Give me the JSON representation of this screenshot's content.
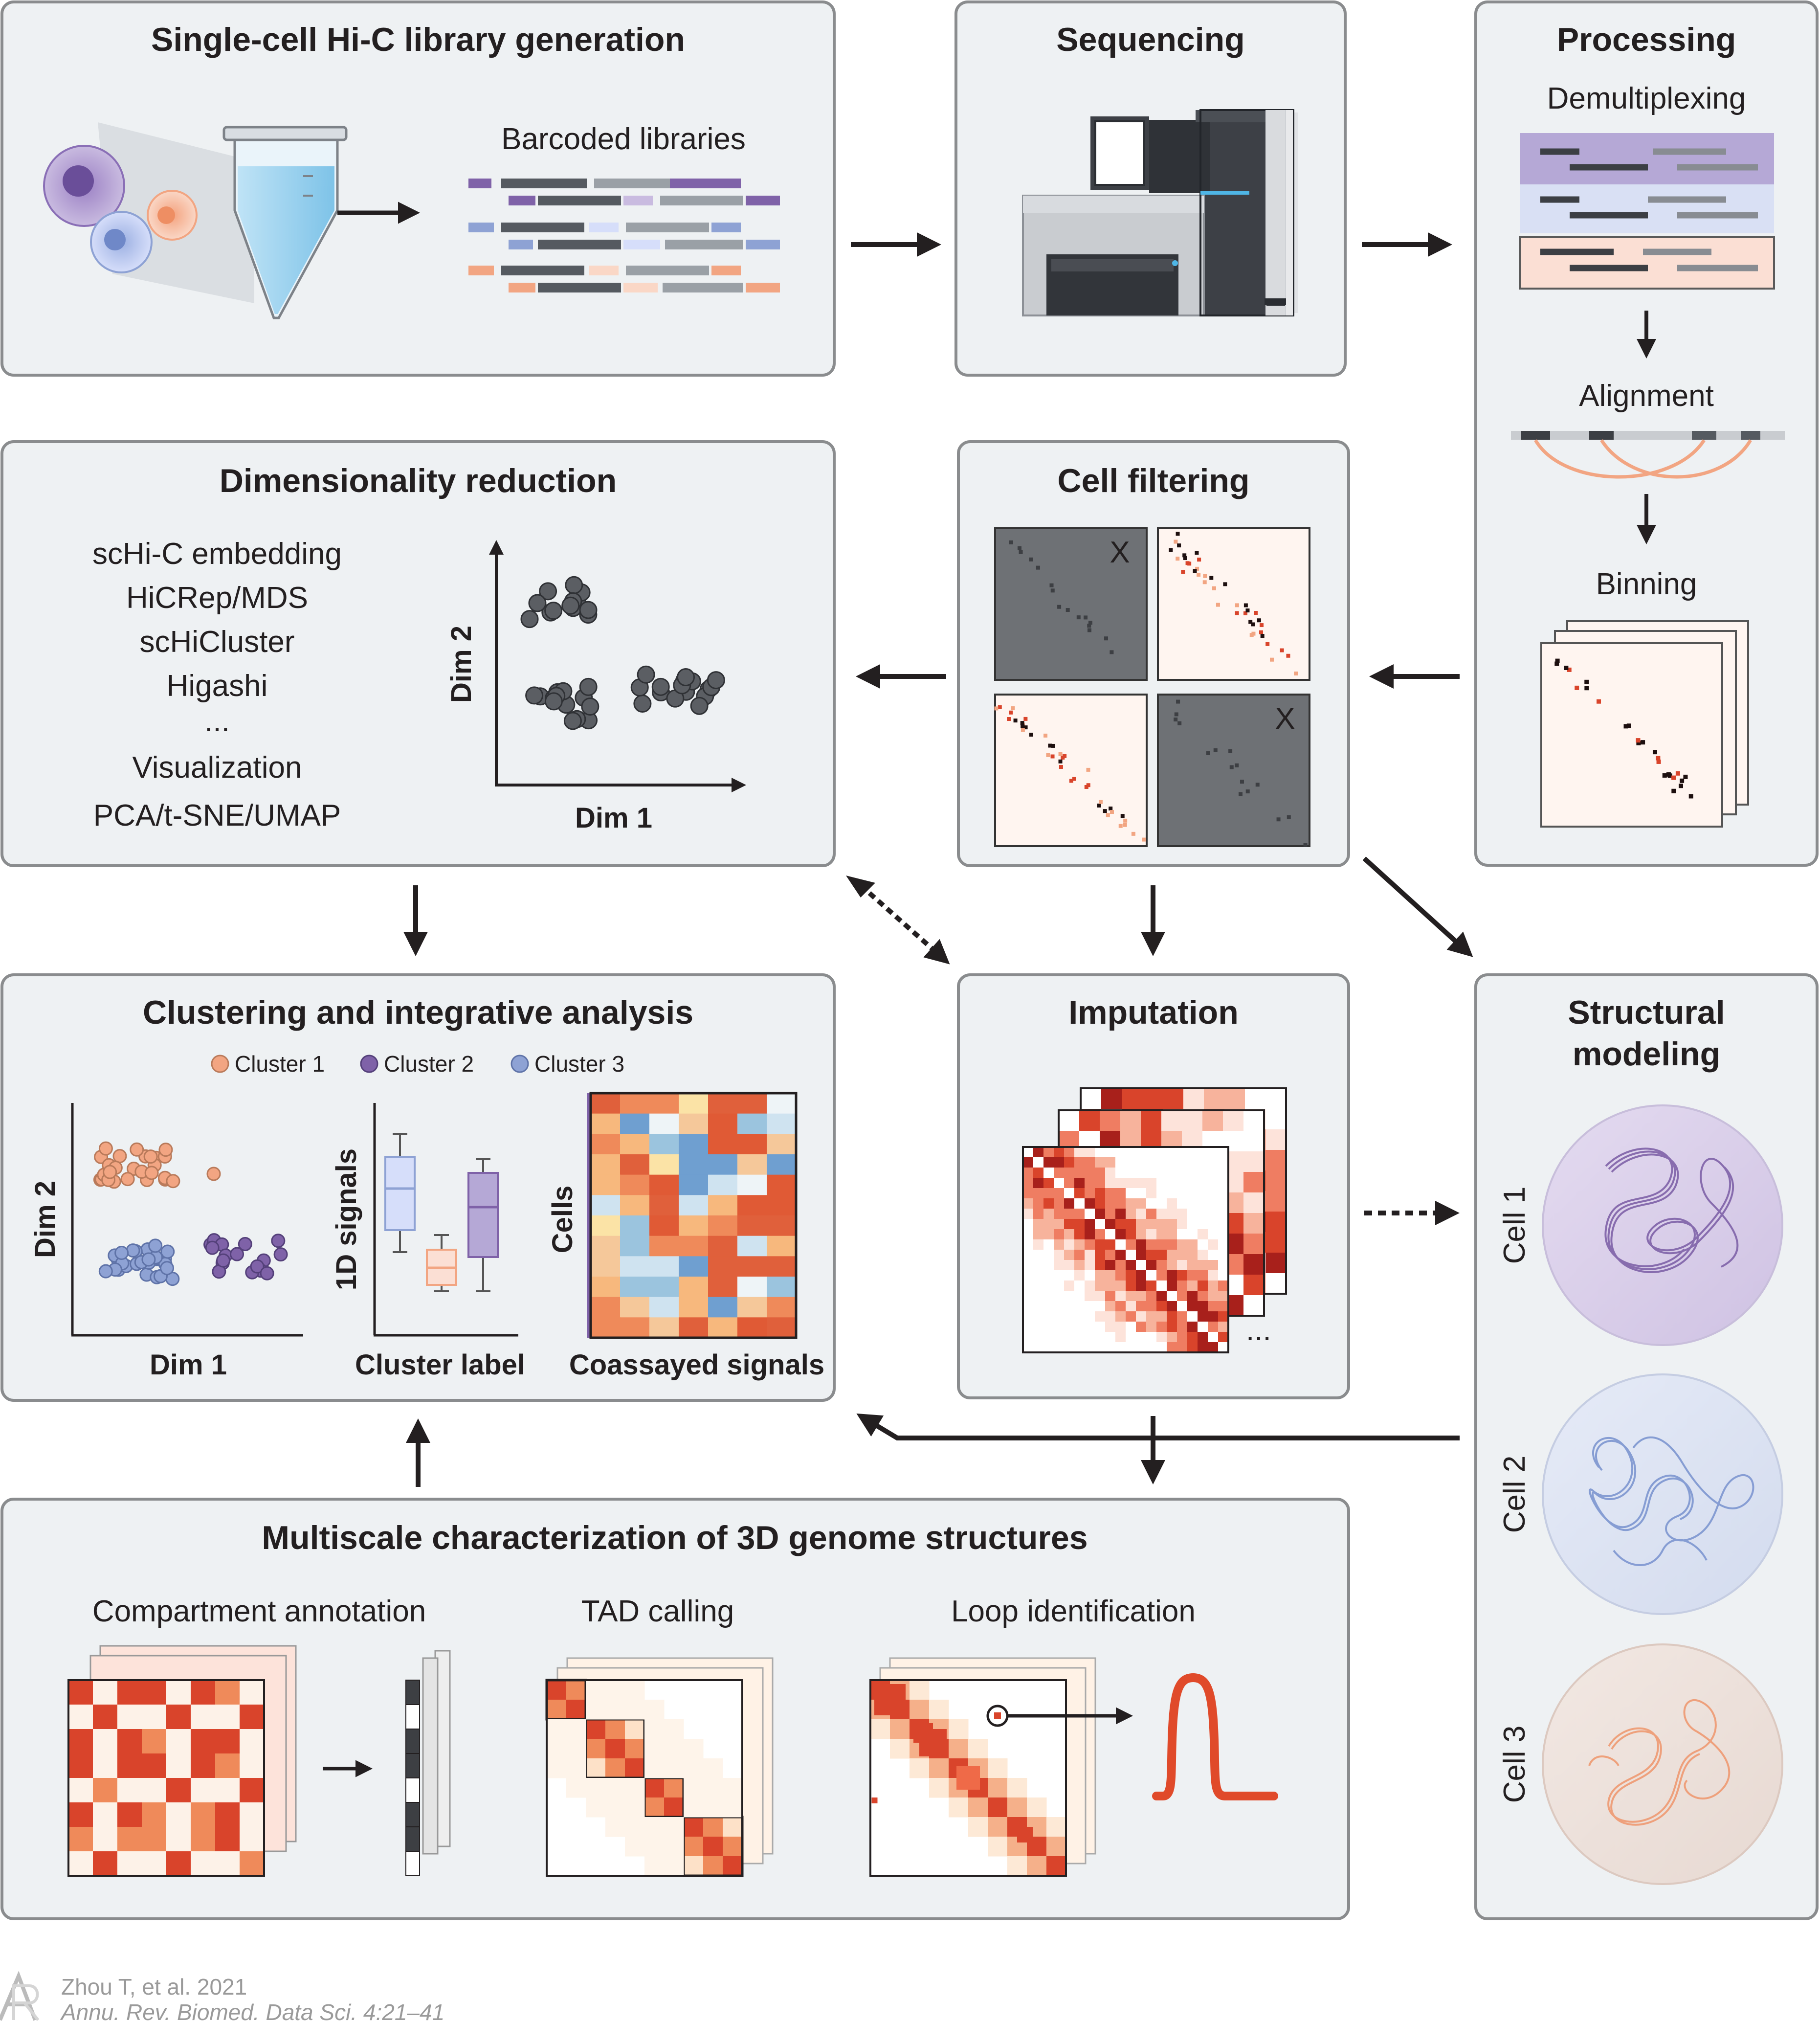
{
  "panels": {
    "library": {
      "title": "Single-cell Hi-C library generation",
      "barcoded_label": "Barcoded libraries"
    },
    "sequencing": {
      "title": "Sequencing"
    },
    "processing": {
      "title": "Processing",
      "step1": "Demultiplexing",
      "step2": "Alignment",
      "step3": "Binning"
    },
    "dimred": {
      "title": "Dimensionality reduction",
      "methods": [
        "scHi-C embedding",
        "HiCRep/MDS",
        "scHiCluster",
        "Higashi",
        "...",
        "Visualization",
        "PCA/t-SNE/UMAP"
      ],
      "xlabel": "Dim 1",
      "ylabel": "Dim 2"
    },
    "filtering": {
      "title": "Cell filtering",
      "reject_mark": "X"
    },
    "clustering": {
      "title": "Clustering and integrative analysis",
      "legend": [
        "Cluster 1",
        "Cluster 2",
        "Cluster 3"
      ],
      "scatter_xlabel": "Dim 1",
      "scatter_ylabel": "Dim 2",
      "box_xlabel": "Cluster label",
      "box_ylabel": "1D signals",
      "heat_xlabel": "Coassayed signals",
      "heat_ylabel": "Cells"
    },
    "imputation": {
      "title": "Imputation",
      "more": "..."
    },
    "structural": {
      "title_line1": "Structural",
      "title_line2": "modeling",
      "cells": [
        "Cell 1",
        "Cell 2",
        "Cell 3"
      ]
    },
    "multiscale": {
      "title": "Multiscale characterization of 3D genome structures",
      "sub1": "Compartment annotation",
      "sub2": "TAD calling",
      "sub3": "Loop identification"
    }
  },
  "citation": {
    "line1": "Zhou T, et al. 2021",
    "line2": "Annu. Rev. Biomed. Data Sci. 4:21–41"
  },
  "colors": {
    "cluster1": "#f2a582",
    "cluster2": "#7f62a8",
    "cluster3": "#8ea2d4",
    "panel_bg": "#eef1f3",
    "heat_red": "#d9442b"
  }
}
